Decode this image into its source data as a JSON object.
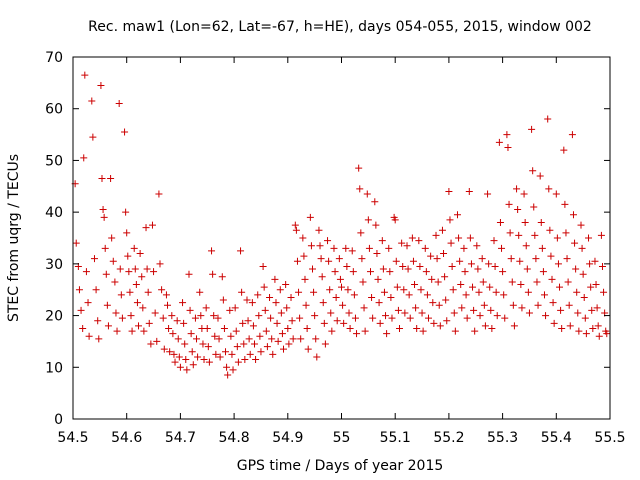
{
  "chart_data": {
    "type": "scatter",
    "title": "Rec. maw1 (Lon=62, Lat=-67, h=HE), days 054-055, 2015, window 002",
    "xlabel": "GPS time / Days of year 2015",
    "ylabel": "STEC from uqrg / TECUs",
    "xlim": [
      54.5,
      55.5
    ],
    "ylim": [
      0,
      70
    ],
    "xticks": [
      "54.5",
      "54.6",
      "54.7",
      "54.8",
      "54.9",
      "55",
      "55.1",
      "55.2",
      "55.3",
      "55.4",
      "55.5"
    ],
    "yticks": [
      "0",
      "10",
      "20",
      "30",
      "40",
      "50",
      "60",
      "70"
    ],
    "grid": false,
    "marker": "plus",
    "color": "#cc0000",
    "points": [
      [
        54.504,
        45.5
      ],
      [
        54.506,
        34.0
      ],
      [
        54.51,
        29.5
      ],
      [
        54.512,
        25.0
      ],
      [
        54.515,
        21.0
      ],
      [
        54.518,
        17.5
      ],
      [
        54.52,
        50.5
      ],
      [
        54.522,
        66.5
      ],
      [
        54.525,
        28.5
      ],
      [
        54.528,
        22.5
      ],
      [
        54.53,
        16.0
      ],
      [
        54.535,
        61.5
      ],
      [
        54.537,
        54.5
      ],
      [
        54.54,
        31.0
      ],
      [
        54.543,
        25.0
      ],
      [
        54.546,
        19.0
      ],
      [
        54.548,
        15.5
      ],
      [
        54.552,
        64.5
      ],
      [
        54.554,
        46.5
      ],
      [
        54.556,
        40.5
      ],
      [
        54.558,
        39.0
      ],
      [
        54.56,
        33.0
      ],
      [
        54.562,
        28.0
      ],
      [
        54.564,
        22.0
      ],
      [
        54.566,
        18.0
      ],
      [
        54.57,
        46.5
      ],
      [
        54.572,
        35.0
      ],
      [
        54.575,
        30.5
      ],
      [
        54.578,
        26.5
      ],
      [
        54.58,
        20.5
      ],
      [
        54.582,
        17.0
      ],
      [
        54.586,
        61.0
      ],
      [
        54.588,
        29.0
      ],
      [
        54.59,
        24.0
      ],
      [
        54.592,
        19.5
      ],
      [
        54.596,
        55.5
      ],
      [
        54.598,
        40.0
      ],
      [
        54.6,
        36.0
      ],
      [
        54.602,
        31.5
      ],
      [
        54.604,
        28.5
      ],
      [
        54.606,
        24.5
      ],
      [
        54.608,
        20.0
      ],
      [
        54.61,
        17.0
      ],
      [
        54.614,
        33.0
      ],
      [
        54.616,
        29.0
      ],
      [
        54.618,
        26.0
      ],
      [
        54.62,
        22.5
      ],
      [
        54.622,
        18.0
      ],
      [
        54.625,
        32.0
      ],
      [
        54.628,
        27.5
      ],
      [
        54.63,
        21.5
      ],
      [
        54.632,
        17.0
      ],
      [
        54.636,
        37.0
      ],
      [
        54.638,
        29.0
      ],
      [
        54.64,
        24.5
      ],
      [
        54.642,
        18.5
      ],
      [
        54.645,
        14.5
      ],
      [
        54.648,
        37.5
      ],
      [
        54.65,
        28.5
      ],
      [
        54.653,
        20.5
      ],
      [
        54.656,
        15.0
      ],
      [
        54.66,
        43.5
      ],
      [
        54.662,
        30.0
      ],
      [
        54.665,
        25.0
      ],
      [
        54.668,
        19.5
      ],
      [
        54.67,
        13.5
      ],
      [
        54.674,
        24.0
      ],
      [
        54.676,
        22.0
      ],
      [
        54.678,
        17.5
      ],
      [
        54.68,
        13.0
      ],
      [
        54.684,
        20.0
      ],
      [
        54.686,
        16.5
      ],
      [
        54.688,
        12.5
      ],
      [
        54.69,
        11.0
      ],
      [
        54.694,
        19.0
      ],
      [
        54.696,
        15.5
      ],
      [
        54.698,
        12.0
      ],
      [
        54.7,
        10.0
      ],
      [
        54.704,
        22.5
      ],
      [
        54.706,
        18.5
      ],
      [
        54.708,
        14.5
      ],
      [
        54.71,
        11.5
      ],
      [
        54.712,
        9.5
      ],
      [
        54.716,
        28.0
      ],
      [
        54.718,
        21.0
      ],
      [
        54.72,
        16.5
      ],
      [
        54.722,
        13.0
      ],
      [
        54.724,
        10.5
      ],
      [
        54.728,
        19.5
      ],
      [
        54.73,
        15.5
      ],
      [
        54.732,
        12.0
      ],
      [
        54.736,
        24.5
      ],
      [
        54.738,
        20.0
      ],
      [
        54.74,
        17.5
      ],
      [
        54.742,
        14.5
      ],
      [
        54.744,
        11.5
      ],
      [
        54.748,
        21.5
      ],
      [
        54.75,
        17.5
      ],
      [
        54.752,
        14.0
      ],
      [
        54.754,
        11.0
      ],
      [
        54.758,
        32.5
      ],
      [
        54.76,
        28.0
      ],
      [
        54.762,
        20.0
      ],
      [
        54.764,
        16.0
      ],
      [
        54.766,
        12.5
      ],
      [
        54.77,
        19.5
      ],
      [
        54.772,
        15.5
      ],
      [
        54.774,
        12.0
      ],
      [
        54.778,
        27.5
      ],
      [
        54.78,
        23.0
      ],
      [
        54.782,
        17.5
      ],
      [
        54.784,
        13.0
      ],
      [
        54.786,
        10.0
      ],
      [
        54.788,
        8.5
      ],
      [
        54.792,
        21.0
      ],
      [
        54.794,
        16.0
      ],
      [
        54.796,
        12.5
      ],
      [
        54.798,
        9.5
      ],
      [
        54.802,
        21.5
      ],
      [
        54.804,
        17.0
      ],
      [
        54.806,
        14.0
      ],
      [
        54.808,
        11.0
      ],
      [
        54.812,
        32.5
      ],
      [
        54.814,
        24.5
      ],
      [
        54.816,
        18.5
      ],
      [
        54.818,
        14.5
      ],
      [
        54.82,
        11.5
      ],
      [
        54.824,
        23.0
      ],
      [
        54.826,
        19.0
      ],
      [
        54.828,
        15.5
      ],
      [
        54.83,
        12.5
      ],
      [
        54.834,
        22.5
      ],
      [
        54.836,
        18.0
      ],
      [
        54.838,
        14.5
      ],
      [
        54.84,
        11.5
      ],
      [
        54.844,
        24.0
      ],
      [
        54.846,
        20.0
      ],
      [
        54.848,
        16.0
      ],
      [
        54.85,
        13.0
      ],
      [
        54.854,
        29.5
      ],
      [
        54.856,
        25.5
      ],
      [
        54.858,
        21.0
      ],
      [
        54.86,
        17.0
      ],
      [
        54.862,
        14.0
      ],
      [
        54.866,
        23.5
      ],
      [
        54.868,
        19.5
      ],
      [
        54.87,
        15.5
      ],
      [
        54.872,
        12.5
      ],
      [
        54.876,
        27.0
      ],
      [
        54.878,
        22.5
      ],
      [
        54.88,
        18.5
      ],
      [
        54.882,
        15.0
      ],
      [
        54.886,
        25.0
      ],
      [
        54.888,
        20.5
      ],
      [
        54.89,
        16.5
      ],
      [
        54.892,
        13.5
      ],
      [
        54.896,
        26.0
      ],
      [
        54.898,
        21.5
      ],
      [
        54.9,
        17.5
      ],
      [
        54.902,
        14.5
      ],
      [
        54.906,
        23.5
      ],
      [
        54.908,
        19.0
      ],
      [
        54.91,
        15.5
      ],
      [
        54.914,
        37.5
      ],
      [
        54.916,
        36.5
      ],
      [
        54.918,
        30.5
      ],
      [
        54.92,
        24.5
      ],
      [
        54.922,
        19.5
      ],
      [
        54.924,
        15.5
      ],
      [
        54.928,
        35.0
      ],
      [
        54.93,
        31.5
      ],
      [
        54.932,
        27.0
      ],
      [
        54.934,
        22.0
      ],
      [
        54.936,
        17.5
      ],
      [
        54.938,
        13.5
      ],
      [
        54.942,
        39.0
      ],
      [
        54.944,
        33.5
      ],
      [
        54.946,
        29.0
      ],
      [
        54.948,
        24.5
      ],
      [
        54.95,
        20.0
      ],
      [
        54.952,
        15.5
      ],
      [
        54.954,
        12.0
      ],
      [
        54.958,
        36.5
      ],
      [
        54.96,
        33.5
      ],
      [
        54.962,
        31.0
      ],
      [
        54.964,
        27.5
      ],
      [
        54.966,
        22.5
      ],
      [
        54.968,
        18.5
      ],
      [
        54.97,
        14.5
      ],
      [
        54.974,
        34.5
      ],
      [
        54.976,
        30.5
      ],
      [
        54.978,
        25.0
      ],
      [
        54.98,
        20.5
      ],
      [
        54.982,
        17.0
      ],
      [
        54.986,
        33.0
      ],
      [
        54.988,
        28.5
      ],
      [
        54.99,
        23.5
      ],
      [
        54.992,
        19.0
      ],
      [
        54.996,
        31.0
      ],
      [
        54.998,
        27.0
      ],
      [
        55.0,
        25.5
      ],
      [
        55.002,
        22.0
      ],
      [
        55.004,
        18.5
      ],
      [
        55.008,
        33.0
      ],
      [
        55.01,
        29.5
      ],
      [
        55.012,
        25.0
      ],
      [
        55.014,
        20.5
      ],
      [
        55.016,
        17.5
      ],
      [
        55.02,
        32.5
      ],
      [
        55.022,
        28.5
      ],
      [
        55.024,
        24.0
      ],
      [
        55.026,
        19.5
      ],
      [
        55.028,
        16.5
      ],
      [
        55.032,
        48.5
      ],
      [
        55.034,
        44.5
      ],
      [
        55.036,
        36.0
      ],
      [
        55.038,
        31.0
      ],
      [
        55.04,
        26.5
      ],
      [
        55.042,
        21.5
      ],
      [
        55.044,
        17.0
      ],
      [
        55.048,
        43.5
      ],
      [
        55.05,
        38.5
      ],
      [
        55.052,
        33.0
      ],
      [
        55.054,
        28.5
      ],
      [
        55.056,
        23.5
      ],
      [
        55.058,
        19.5
      ],
      [
        55.062,
        42.0
      ],
      [
        55.064,
        37.5
      ],
      [
        55.066,
        32.0
      ],
      [
        55.068,
        27.0
      ],
      [
        55.07,
        22.5
      ],
      [
        55.072,
        18.5
      ],
      [
        55.076,
        34.5
      ],
      [
        55.078,
        29.0
      ],
      [
        55.08,
        24.5
      ],
      [
        55.082,
        20.0
      ],
      [
        55.084,
        16.5
      ],
      [
        55.088,
        33.0
      ],
      [
        55.09,
        28.5
      ],
      [
        55.092,
        23.5
      ],
      [
        55.094,
        19.5
      ],
      [
        55.098,
        39.0
      ],
      [
        55.1,
        38.5
      ],
      [
        55.102,
        30.5
      ],
      [
        55.104,
        25.5
      ],
      [
        55.106,
        21.0
      ],
      [
        55.108,
        17.5
      ],
      [
        55.112,
        34.0
      ],
      [
        55.114,
        29.5
      ],
      [
        55.116,
        25.0
      ],
      [
        55.118,
        20.5
      ],
      [
        55.122,
        33.5
      ],
      [
        55.124,
        29.0
      ],
      [
        55.126,
        24.0
      ],
      [
        55.128,
        19.5
      ],
      [
        55.132,
        35.0
      ],
      [
        55.134,
        30.5
      ],
      [
        55.136,
        26.0
      ],
      [
        55.138,
        21.5
      ],
      [
        55.14,
        17.5
      ],
      [
        55.144,
        34.5
      ],
      [
        55.146,
        29.5
      ],
      [
        55.148,
        25.0
      ],
      [
        55.15,
        20.5
      ],
      [
        55.152,
        17.0
      ],
      [
        55.156,
        33.0
      ],
      [
        55.158,
        28.5
      ],
      [
        55.16,
        24.0
      ],
      [
        55.162,
        19.5
      ],
      [
        55.166,
        31.5
      ],
      [
        55.168,
        27.0
      ],
      [
        55.17,
        22.5
      ],
      [
        55.172,
        18.5
      ],
      [
        55.176,
        35.5
      ],
      [
        55.178,
        31.0
      ],
      [
        55.18,
        26.5
      ],
      [
        55.182,
        22.0
      ],
      [
        55.184,
        18.0
      ],
      [
        55.188,
        36.5
      ],
      [
        55.19,
        32.0
      ],
      [
        55.192,
        27.5
      ],
      [
        55.194,
        23.0
      ],
      [
        55.196,
        19.0
      ],
      [
        55.2,
        44.0
      ],
      [
        55.202,
        38.5
      ],
      [
        55.204,
        34.0
      ],
      [
        55.206,
        29.5
      ],
      [
        55.208,
        25.0
      ],
      [
        55.21,
        20.5
      ],
      [
        55.212,
        17.0
      ],
      [
        55.216,
        39.5
      ],
      [
        55.218,
        35.0
      ],
      [
        55.22,
        30.5
      ],
      [
        55.222,
        26.0
      ],
      [
        55.224,
        21.5
      ],
      [
        55.228,
        33.0
      ],
      [
        55.23,
        28.5
      ],
      [
        55.232,
        24.0
      ],
      [
        55.234,
        19.5
      ],
      [
        55.238,
        44.0
      ],
      [
        55.24,
        35.0
      ],
      [
        55.242,
        30.0
      ],
      [
        55.244,
        25.5
      ],
      [
        55.246,
        21.0
      ],
      [
        55.248,
        17.0
      ],
      [
        55.252,
        33.5
      ],
      [
        55.254,
        29.0
      ],
      [
        55.256,
        24.5
      ],
      [
        55.258,
        20.0
      ],
      [
        55.262,
        31.0
      ],
      [
        55.264,
        26.5
      ],
      [
        55.266,
        22.0
      ],
      [
        55.268,
        18.0
      ],
      [
        55.272,
        43.5
      ],
      [
        55.274,
        30.0
      ],
      [
        55.276,
        25.5
      ],
      [
        55.278,
        21.0
      ],
      [
        55.28,
        17.5
      ],
      [
        55.284,
        34.5
      ],
      [
        55.286,
        29.5
      ],
      [
        55.288,
        24.5
      ],
      [
        55.29,
        20.0
      ],
      [
        55.294,
        53.5
      ],
      [
        55.296,
        38.0
      ],
      [
        55.298,
        33.0
      ],
      [
        55.3,
        28.5
      ],
      [
        55.302,
        24.0
      ],
      [
        55.304,
        19.5
      ],
      [
        55.308,
        55.0
      ],
      [
        55.31,
        52.5
      ],
      [
        55.312,
        41.5
      ],
      [
        55.314,
        36.0
      ],
      [
        55.316,
        31.0
      ],
      [
        55.318,
        26.5
      ],
      [
        55.32,
        22.0
      ],
      [
        55.322,
        18.0
      ],
      [
        55.326,
        44.5
      ],
      [
        55.328,
        40.5
      ],
      [
        55.33,
        35.5
      ],
      [
        55.332,
        30.5
      ],
      [
        55.334,
        26.0
      ],
      [
        55.336,
        21.5
      ],
      [
        55.34,
        43.5
      ],
      [
        55.342,
        38.0
      ],
      [
        55.344,
        33.5
      ],
      [
        55.346,
        29.0
      ],
      [
        55.348,
        24.5
      ],
      [
        55.35,
        20.5
      ],
      [
        55.354,
        56.0
      ],
      [
        55.356,
        48.0
      ],
      [
        55.358,
        41.0
      ],
      [
        55.36,
        35.5
      ],
      [
        55.362,
        31.0
      ],
      [
        55.364,
        26.5
      ],
      [
        55.366,
        22.0
      ],
      [
        55.37,
        47.0
      ],
      [
        55.372,
        38.0
      ],
      [
        55.374,
        33.0
      ],
      [
        55.376,
        28.5
      ],
      [
        55.378,
        24.0
      ],
      [
        55.38,
        20.0
      ],
      [
        55.384,
        58.0
      ],
      [
        55.386,
        44.5
      ],
      [
        55.388,
        36.5
      ],
      [
        55.39,
        31.5
      ],
      [
        55.392,
        27.0
      ],
      [
        55.394,
        22.5
      ],
      [
        55.396,
        18.5
      ],
      [
        55.4,
        43.5
      ],
      [
        55.402,
        35.0
      ],
      [
        55.404,
        30.0
      ],
      [
        55.406,
        25.5
      ],
      [
        55.408,
        21.0
      ],
      [
        55.41,
        17.5
      ],
      [
        55.414,
        52.0
      ],
      [
        55.416,
        41.5
      ],
      [
        55.418,
        36.0
      ],
      [
        55.42,
        31.0
      ],
      [
        55.422,
        26.5
      ],
      [
        55.424,
        22.0
      ],
      [
        55.426,
        18.0
      ],
      [
        55.43,
        55.0
      ],
      [
        55.432,
        39.5
      ],
      [
        55.434,
        34.0
      ],
      [
        55.436,
        29.0
      ],
      [
        55.438,
        24.5
      ],
      [
        55.44,
        20.5
      ],
      [
        55.442,
        17.0
      ],
      [
        55.446,
        37.5
      ],
      [
        55.448,
        33.0
      ],
      [
        55.45,
        28.0
      ],
      [
        55.452,
        23.5
      ],
      [
        55.454,
        19.5
      ],
      [
        55.456,
        16.5
      ],
      [
        55.46,
        35.0
      ],
      [
        55.462,
        30.0
      ],
      [
        55.464,
        25.5
      ],
      [
        55.466,
        21.0
      ],
      [
        55.468,
        17.5
      ],
      [
        55.472,
        30.5
      ],
      [
        55.474,
        26.0
      ],
      [
        55.476,
        21.5
      ],
      [
        55.478,
        18.0
      ],
      [
        55.48,
        16.0
      ],
      [
        55.484,
        35.5
      ],
      [
        55.486,
        29.5
      ],
      [
        55.488,
        24.5
      ],
      [
        55.49,
        20.5
      ],
      [
        55.492,
        17.0
      ],
      [
        55.494,
        16.5
      ]
    ]
  }
}
